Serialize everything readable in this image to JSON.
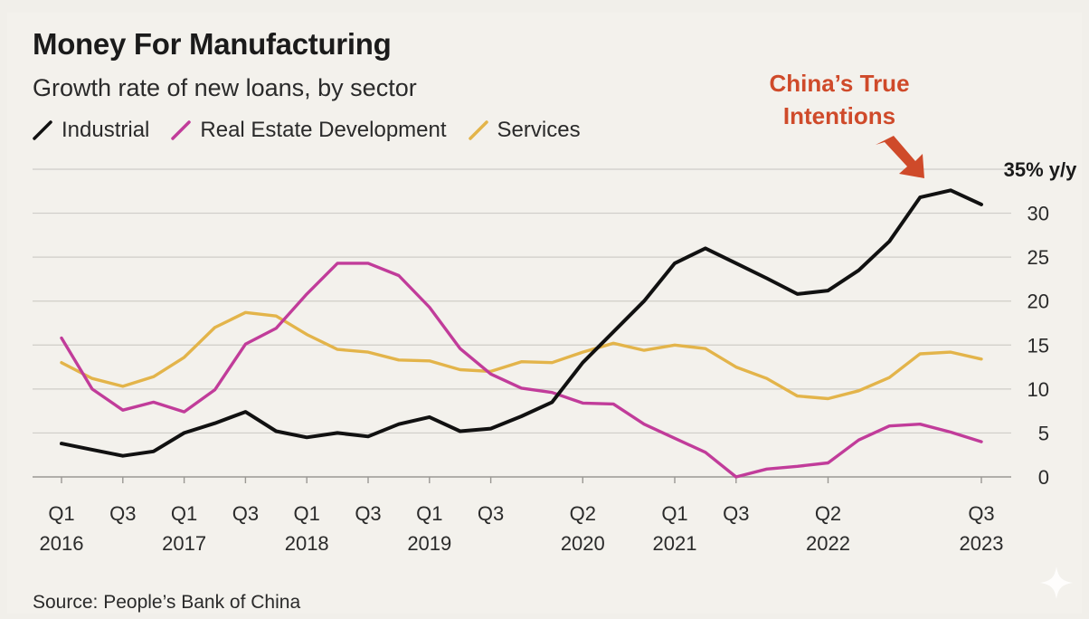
{
  "header": {
    "title": "Money For Manufacturing",
    "subtitle": "Growth rate of new loans, by sector"
  },
  "annotation": {
    "text_line1": "China’s True",
    "text_line2": "Intentions"
  },
  "source": "Source: People’s Bank of China",
  "colors": {
    "industrial": "#111111",
    "real_estate": "#c13c9a",
    "services": "#e3b44a",
    "annotation": "#cf4a2a",
    "grid": "#cfcdc8"
  },
  "chart_data": {
    "type": "line",
    "title": "Money For Manufacturing",
    "subtitle": "Growth rate of new loans, by sector",
    "y_unit_label": "35% y/y",
    "ylim": [
      0,
      35
    ],
    "yticks": [
      0,
      5,
      10,
      15,
      20,
      25,
      30
    ],
    "grid": true,
    "legend_placement": "top-left",
    "x": [
      "Q1 2016",
      "Q2 2016",
      "Q3 2016",
      "Q4 2016",
      "Q1 2017",
      "Q2 2017",
      "Q3 2017",
      "Q4 2017",
      "Q1 2018",
      "Q2 2018",
      "Q3 2018",
      "Q4 2018",
      "Q1 2019",
      "Q2 2019",
      "Q3 2019",
      "Q4 2019",
      "Q1 2020",
      "Q2 2020",
      "Q3 2020",
      "Q4 2020",
      "Q1 2021",
      "Q2 2021",
      "Q3 2021",
      "Q4 2021",
      "Q1 2022",
      "Q2 2022",
      "Q3 2022",
      "Q4 2022",
      "Q1 2023",
      "Q2 2023",
      "Q3 2023"
    ],
    "x_tick_labels": [
      {
        "q": "Q1",
        "year": "2016",
        "x": "Q1 2016"
      },
      {
        "q": "Q3",
        "year": "",
        "x": "Q3 2016"
      },
      {
        "q": "Q1",
        "year": "2017",
        "x": "Q1 2017"
      },
      {
        "q": "Q3",
        "year": "",
        "x": "Q3 2017"
      },
      {
        "q": "Q1",
        "year": "2018",
        "x": "Q1 2018"
      },
      {
        "q": "Q3",
        "year": "",
        "x": "Q3 2018"
      },
      {
        "q": "Q1",
        "year": "2019",
        "x": "Q1 2019"
      },
      {
        "q": "Q3",
        "year": "",
        "x": "Q3 2019"
      },
      {
        "q": "Q2",
        "year": "2020",
        "x": "Q2 2020"
      },
      {
        "q": "Q1",
        "year": "2021",
        "x": "Q1 2021"
      },
      {
        "q": "Q3",
        "year": "",
        "x": "Q3 2021"
      },
      {
        "q": "Q2",
        "year": "2022",
        "x": "Q2 2022"
      },
      {
        "q": "Q3",
        "year": "2023",
        "x": "Q3 2023"
      }
    ],
    "series": [
      {
        "name": "Industrial",
        "key": "industrial",
        "values": [
          3.8,
          3.1,
          2.4,
          2.9,
          5.0,
          6.1,
          7.4,
          5.2,
          4.5,
          5.0,
          4.6,
          6.0,
          6.8,
          5.2,
          5.5,
          6.9,
          8.5,
          13.0,
          16.5,
          20.0,
          24.3,
          26.0,
          24.3,
          22.6,
          20.8,
          21.2,
          23.5,
          26.8,
          31.8,
          32.6,
          31.0
        ]
      },
      {
        "name": "Real Estate Development",
        "key": "real_estate",
        "values": [
          15.8,
          10.0,
          7.6,
          8.5,
          7.4,
          9.9,
          15.1,
          16.9,
          20.8,
          24.3,
          24.3,
          22.9,
          19.3,
          14.6,
          11.7,
          10.1,
          9.6,
          8.4,
          8.3,
          6.0,
          4.4,
          2.8,
          0.0,
          0.9,
          1.2,
          1.6,
          4.2,
          5.8,
          6.0,
          5.1,
          4.0
        ]
      },
      {
        "name": "Services",
        "key": "services",
        "values": [
          13.0,
          11.2,
          10.3,
          11.4,
          13.6,
          17.0,
          18.7,
          18.3,
          16.2,
          14.5,
          14.2,
          13.3,
          13.2,
          12.2,
          12.0,
          13.1,
          13.0,
          14.2,
          15.2,
          14.4,
          15.0,
          14.6,
          12.5,
          11.2,
          9.2,
          8.9,
          9.8,
          11.3,
          14.0,
          14.2,
          13.4
        ]
      }
    ]
  }
}
